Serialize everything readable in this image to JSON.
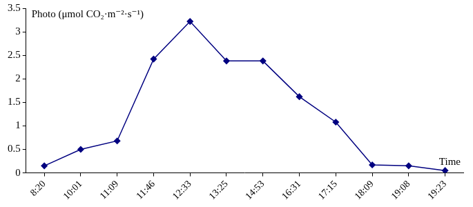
{
  "chart_data": {
    "type": "line",
    "y_label": "Photo (μmol CO₂·m⁻²·s⁻¹)",
    "x_label": "Time",
    "categories": [
      "8:20",
      "10:01",
      "11:09",
      "11:46",
      "12:33",
      "13:25",
      "14:53",
      "16:31",
      "17:15",
      "18:09",
      "19:08",
      "19:23"
    ],
    "values": [
      0.15,
      0.5,
      0.68,
      2.42,
      3.22,
      2.38,
      2.38,
      1.62,
      1.08,
      0.17,
      0.15,
      0.05
    ],
    "color": "#000080",
    "marker": "diamond",
    "ylim": [
      0,
      3.5
    ],
    "yticks": [
      0,
      0.5,
      1,
      1.5,
      2,
      2.5,
      3,
      3.5
    ],
    "grid": false
  }
}
